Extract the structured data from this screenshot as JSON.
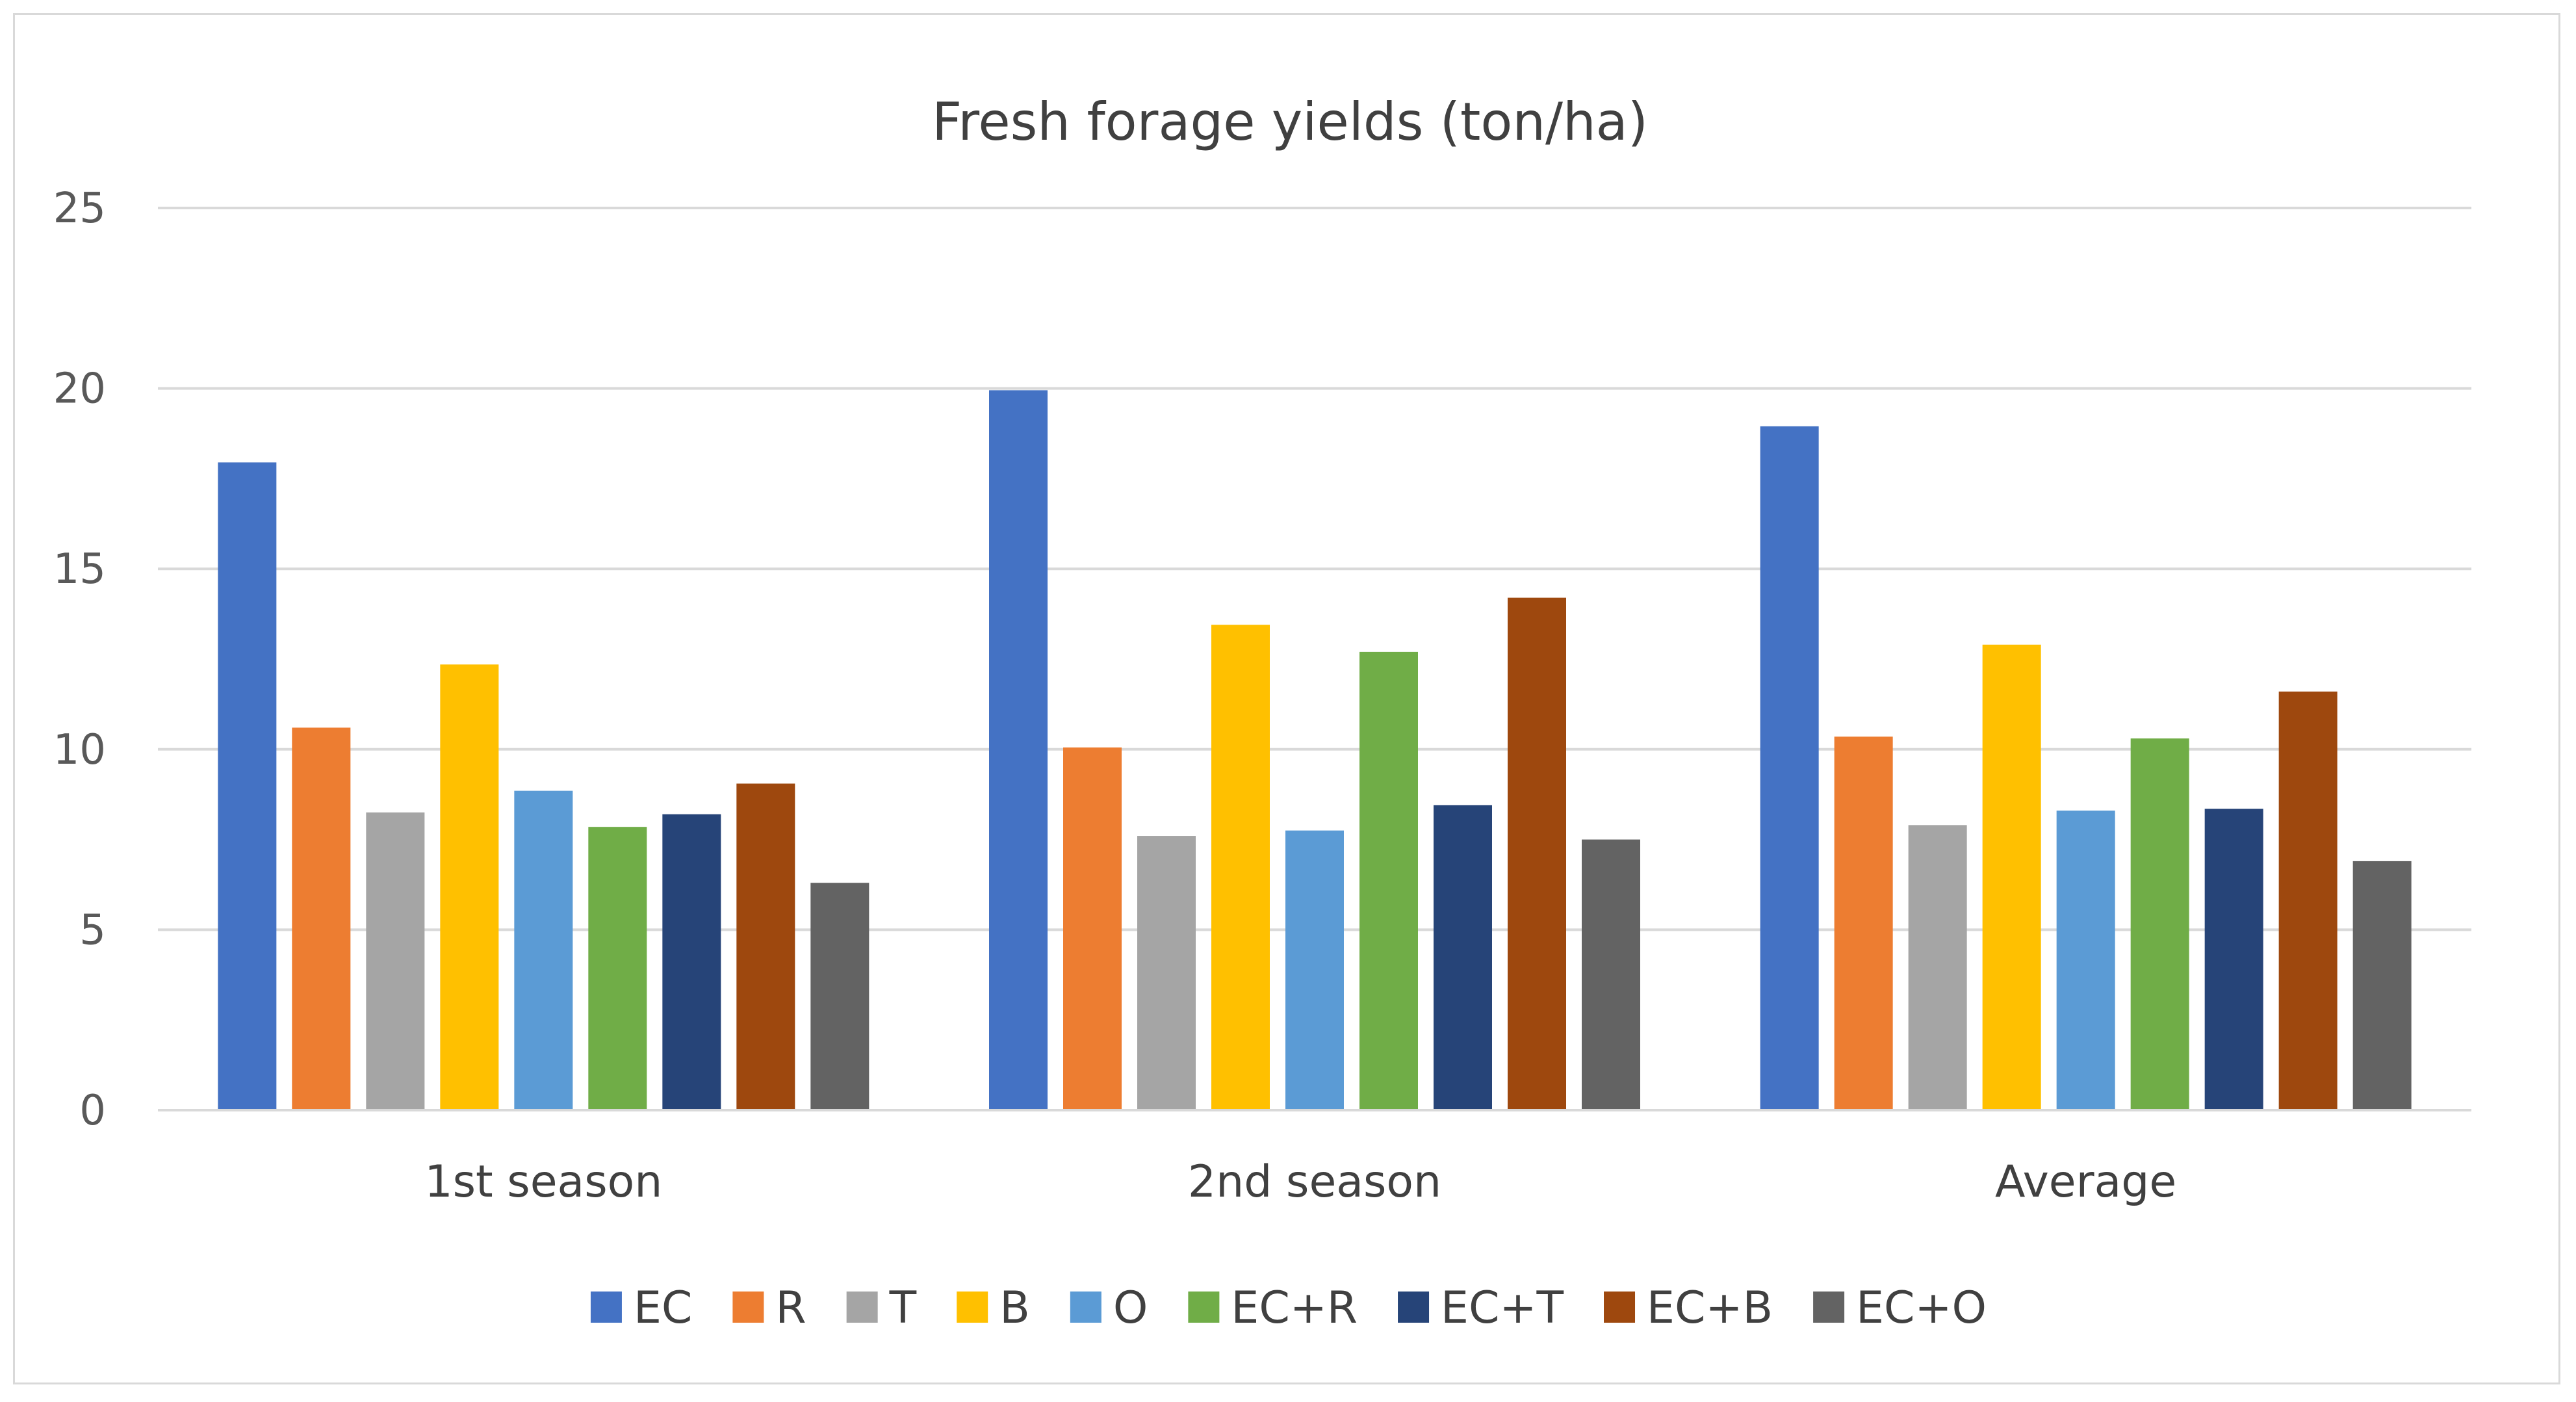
{
  "chart_data": {
    "type": "bar",
    "title": "Fresh forage yields (ton/ha)",
    "xlabel": "",
    "ylabel": "",
    "ylim": [
      0,
      25
    ],
    "yticks": [
      0,
      5,
      10,
      15,
      20,
      25
    ],
    "grid": true,
    "legend_position": "bottom",
    "categories": [
      "1st season",
      "2nd season",
      "Average"
    ],
    "series": [
      {
        "name": "EC",
        "color": "#4472C4",
        "values": [
          17.95,
          19.95,
          18.95
        ]
      },
      {
        "name": "R",
        "color": "#ED7D31",
        "values": [
          10.6,
          10.05,
          10.35
        ]
      },
      {
        "name": "T",
        "color": "#A5A5A5",
        "values": [
          8.25,
          7.6,
          7.9
        ]
      },
      {
        "name": "B",
        "color": "#FFC000",
        "values": [
          12.35,
          13.45,
          12.9
        ]
      },
      {
        "name": "O",
        "color": "#5B9BD5",
        "values": [
          8.85,
          7.75,
          8.3
        ]
      },
      {
        "name": "EC+R",
        "color": "#70AD47",
        "values": [
          7.85,
          12.7,
          10.3
        ]
      },
      {
        "name": "EC+T",
        "color": "#264478",
        "values": [
          8.2,
          8.45,
          8.35
        ]
      },
      {
        "name": "EC+B",
        "color": "#9E480E",
        "values": [
          9.05,
          14.2,
          11.6
        ]
      },
      {
        "name": "EC+O",
        "color": "#636363",
        "values": [
          6.3,
          7.5,
          6.9
        ]
      }
    ]
  }
}
